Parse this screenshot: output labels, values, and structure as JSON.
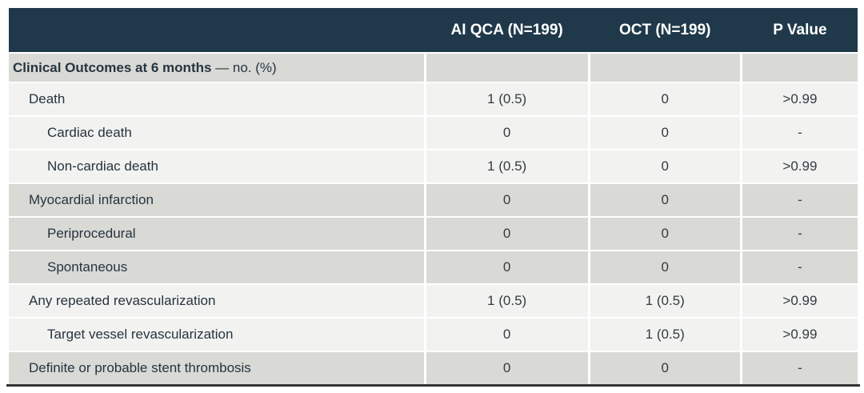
{
  "header": {
    "columns": [
      {
        "label": ""
      },
      {
        "label": "AI QCA (N=199)"
      },
      {
        "label": "OCT (N=199)"
      },
      {
        "label": "P Value"
      }
    ]
  },
  "section": {
    "title_bold": "Clinical Outcomes at 6 months",
    "title_suffix": " — no. (%)"
  },
  "rows": [
    {
      "label": "Death",
      "indent": 1,
      "shade": "light",
      "values": [
        "1 (0.5)",
        "0",
        ">0.99"
      ]
    },
    {
      "label": "Cardiac death",
      "indent": 2,
      "shade": "light",
      "values": [
        "0",
        "0",
        "-"
      ]
    },
    {
      "label": "Non-cardiac death",
      "indent": 2,
      "shade": "light",
      "values": [
        "1 (0.5)",
        "0",
        ">0.99"
      ]
    },
    {
      "label": "Myocardial infarction",
      "indent": 1,
      "shade": "gray",
      "values": [
        "0",
        "0",
        "-"
      ]
    },
    {
      "label": "Periprocedural",
      "indent": 2,
      "shade": "gray",
      "values": [
        "0",
        "0",
        "-"
      ]
    },
    {
      "label": "Spontaneous",
      "indent": 2,
      "shade": "gray",
      "values": [
        "0",
        "0",
        "-"
      ]
    },
    {
      "label": "Any repeated revascularization",
      "indent": 1,
      "shade": "light",
      "values": [
        "1 (0.5)",
        "1 (0.5)",
        ">0.99"
      ]
    },
    {
      "label": "Target vessel revascularization",
      "indent": 2,
      "shade": "light",
      "values": [
        "0",
        "1 (0.5)",
        ">0.99"
      ]
    },
    {
      "label": "Definite or probable stent thrombosis",
      "indent": 1,
      "shade": "gray",
      "values": [
        "0",
        "0",
        "-"
      ]
    }
  ],
  "colors": {
    "header_bg": "#20394a",
    "row_gray": "#d9d9d6",
    "row_light": "#f2f2f0",
    "header_text": "#ffffff",
    "label_text": "#26343f",
    "value_text": "#333b42",
    "bottom_line": "#333333",
    "separator": "#ffffff"
  },
  "chart_data": {
    "type": "table",
    "title": "Clinical Outcomes at 6 months — no. (%)",
    "columns": [
      "",
      "AI QCA (N=199)",
      "OCT (N=199)",
      "P Value"
    ],
    "rows": [
      [
        "Death",
        "1 (0.5)",
        "0",
        ">0.99"
      ],
      [
        "Cardiac death",
        "0",
        "0",
        "-"
      ],
      [
        "Non-cardiac death",
        "1 (0.5)",
        "0",
        ">0.99"
      ],
      [
        "Myocardial infarction",
        "0",
        "0",
        "-"
      ],
      [
        "Periprocedural",
        "0",
        "0",
        "-"
      ],
      [
        "Spontaneous",
        "0",
        "0",
        "-"
      ],
      [
        "Any repeated revascularization",
        "1 (0.5)",
        "1 (0.5)",
        ">0.99"
      ],
      [
        "Target vessel revascularization",
        "0",
        "1 (0.5)",
        ">0.99"
      ],
      [
        "Definite or probable stent thrombosis",
        "0",
        "0",
        "-"
      ]
    ],
    "layout": {
      "sample_size_per_arm": 199,
      "banding": "grouped gray/white",
      "grid": "white separators"
    }
  }
}
